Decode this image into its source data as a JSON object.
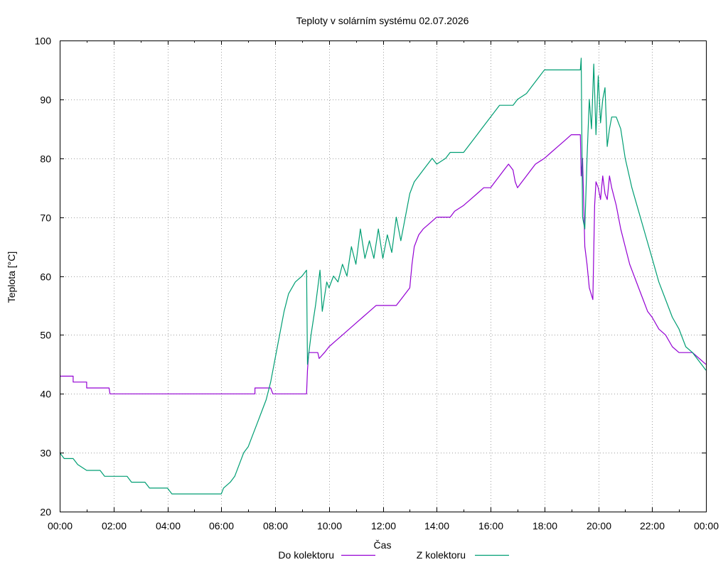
{
  "chart_data": {
    "type": "line",
    "title": "Teploty v solárním systému 02.07.2026",
    "xlabel": "Čas",
    "ylabel": "Teplota [°C]",
    "ylim": [
      20,
      100
    ],
    "xlim": [
      "00:00",
      "24:00"
    ],
    "y_ticks": [
      20,
      30,
      40,
      50,
      60,
      70,
      80,
      90,
      100
    ],
    "x_ticks": [
      "00:00",
      "02:00",
      "04:00",
      "06:00",
      "08:00",
      "10:00",
      "12:00",
      "14:00",
      "16:00",
      "18:00",
      "20:00",
      "22:00",
      "00:00"
    ],
    "grid": true,
    "legend_position": "bottom",
    "series": [
      {
        "name": "Do kolektoru",
        "color": "#9400d3",
        "points": [
          [
            "00:00",
            43
          ],
          [
            "00:30",
            43
          ],
          [
            "00:30",
            42
          ],
          [
            "01:00",
            42
          ],
          [
            "01:00",
            41
          ],
          [
            "01:50",
            41
          ],
          [
            "01:52",
            40
          ],
          [
            "02:00",
            40
          ],
          [
            "07:15",
            40
          ],
          [
            "07:15",
            41
          ],
          [
            "07:50",
            41
          ],
          [
            "07:55",
            40
          ],
          [
            "09:10",
            40
          ],
          [
            "09:12",
            44
          ],
          [
            "09:15",
            47
          ],
          [
            "09:35",
            47
          ],
          [
            "09:38",
            46
          ],
          [
            "09:50",
            47
          ],
          [
            "10:00",
            48
          ],
          [
            "10:15",
            49
          ],
          [
            "10:30",
            50
          ],
          [
            "10:45",
            51
          ],
          [
            "11:00",
            52
          ],
          [
            "11:15",
            53
          ],
          [
            "11:30",
            54
          ],
          [
            "11:45",
            55
          ],
          [
            "12:30",
            55
          ],
          [
            "12:40",
            56
          ],
          [
            "12:50",
            57
          ],
          [
            "13:00",
            58
          ],
          [
            "13:05",
            62
          ],
          [
            "13:10",
            65
          ],
          [
            "13:20",
            67
          ],
          [
            "13:30",
            68
          ],
          [
            "13:45",
            69
          ],
          [
            "14:00",
            70
          ],
          [
            "14:30",
            70
          ],
          [
            "14:40",
            71
          ],
          [
            "15:00",
            72
          ],
          [
            "15:15",
            73
          ],
          [
            "15:30",
            74
          ],
          [
            "15:45",
            75
          ],
          [
            "16:00",
            75
          ],
          [
            "16:10",
            76
          ],
          [
            "16:20",
            77
          ],
          [
            "16:30",
            78
          ],
          [
            "16:40",
            79
          ],
          [
            "16:50",
            78
          ],
          [
            "16:55",
            76
          ],
          [
            "17:00",
            75
          ],
          [
            "17:10",
            76
          ],
          [
            "17:20",
            77
          ],
          [
            "17:30",
            78
          ],
          [
            "17:40",
            79
          ],
          [
            "18:00",
            80
          ],
          [
            "18:15",
            81
          ],
          [
            "18:30",
            82
          ],
          [
            "18:45",
            83
          ],
          [
            "19:00",
            84
          ],
          [
            "19:20",
            84
          ],
          [
            "19:22",
            77
          ],
          [
            "19:25",
            80
          ],
          [
            "19:30",
            65
          ],
          [
            "19:35",
            62
          ],
          [
            "19:40",
            58
          ],
          [
            "19:48",
            56
          ],
          [
            "19:52",
            72
          ],
          [
            "19:55",
            76
          ],
          [
            "20:00",
            75
          ],
          [
            "20:05",
            73
          ],
          [
            "20:10",
            77
          ],
          [
            "20:15",
            74
          ],
          [
            "20:20",
            73
          ],
          [
            "20:25",
            77
          ],
          [
            "20:30",
            75
          ],
          [
            "20:40",
            72
          ],
          [
            "20:50",
            68
          ],
          [
            "21:00",
            65
          ],
          [
            "21:10",
            62
          ],
          [
            "21:20",
            60
          ],
          [
            "21:30",
            58
          ],
          [
            "21:40",
            56
          ],
          [
            "21:50",
            54
          ],
          [
            "22:00",
            53
          ],
          [
            "22:15",
            51
          ],
          [
            "22:30",
            50
          ],
          [
            "22:45",
            48
          ],
          [
            "23:00",
            47
          ],
          [
            "23:30",
            47
          ],
          [
            "23:45",
            46
          ],
          [
            "24:00",
            45
          ]
        ]
      },
      {
        "name": "Z kolektoru",
        "color": "#009e73",
        "points": [
          [
            "00:00",
            30
          ],
          [
            "00:10",
            29
          ],
          [
            "00:30",
            29
          ],
          [
            "00:40",
            28
          ],
          [
            "01:00",
            27
          ],
          [
            "01:30",
            27
          ],
          [
            "01:40",
            26
          ],
          [
            "02:30",
            26
          ],
          [
            "02:40",
            25
          ],
          [
            "03:10",
            25
          ],
          [
            "03:20",
            24
          ],
          [
            "04:00",
            24
          ],
          [
            "04:10",
            23
          ],
          [
            "06:00",
            23
          ],
          [
            "06:05",
            24
          ],
          [
            "06:20",
            25
          ],
          [
            "06:30",
            26
          ],
          [
            "06:40",
            28
          ],
          [
            "06:50",
            30
          ],
          [
            "07:00",
            31
          ],
          [
            "07:10",
            33
          ],
          [
            "07:20",
            35
          ],
          [
            "07:30",
            37
          ],
          [
            "07:40",
            39
          ],
          [
            "07:50",
            42
          ],
          [
            "08:00",
            46
          ],
          [
            "08:10",
            50
          ],
          [
            "08:20",
            54
          ],
          [
            "08:30",
            57
          ],
          [
            "08:45",
            59
          ],
          [
            "09:00",
            60
          ],
          [
            "09:10",
            61
          ],
          [
            "09:12",
            45
          ],
          [
            "09:20",
            50
          ],
          [
            "09:30",
            55
          ],
          [
            "09:40",
            61
          ],
          [
            "09:45",
            54
          ],
          [
            "09:55",
            59
          ],
          [
            "10:00",
            58
          ],
          [
            "10:10",
            60
          ],
          [
            "10:20",
            59
          ],
          [
            "10:30",
            62
          ],
          [
            "10:40",
            60
          ],
          [
            "10:50",
            65
          ],
          [
            "11:00",
            62
          ],
          [
            "11:10",
            68
          ],
          [
            "11:20",
            63
          ],
          [
            "11:30",
            66
          ],
          [
            "11:40",
            63
          ],
          [
            "11:50",
            68
          ],
          [
            "12:00",
            63
          ],
          [
            "12:10",
            67
          ],
          [
            "12:20",
            64
          ],
          [
            "12:30",
            70
          ],
          [
            "12:40",
            66
          ],
          [
            "12:50",
            70
          ],
          [
            "13:00",
            74
          ],
          [
            "13:10",
            76
          ],
          [
            "13:20",
            77
          ],
          [
            "13:30",
            78
          ],
          [
            "13:40",
            79
          ],
          [
            "13:50",
            80
          ],
          [
            "14:00",
            79
          ],
          [
            "14:20",
            80
          ],
          [
            "14:30",
            81
          ],
          [
            "15:00",
            81
          ],
          [
            "15:10",
            82
          ],
          [
            "15:20",
            83
          ],
          [
            "15:30",
            84
          ],
          [
            "15:40",
            85
          ],
          [
            "15:50",
            86
          ],
          [
            "16:00",
            87
          ],
          [
            "16:10",
            88
          ],
          [
            "16:20",
            89
          ],
          [
            "16:50",
            89
          ],
          [
            "17:00",
            90
          ],
          [
            "17:20",
            91
          ],
          [
            "17:30",
            92
          ],
          [
            "17:40",
            93
          ],
          [
            "17:50",
            94
          ],
          [
            "18:00",
            95
          ],
          [
            "19:20",
            95
          ],
          [
            "19:22",
            97
          ],
          [
            "19:25",
            70
          ],
          [
            "19:30",
            68
          ],
          [
            "19:35",
            80
          ],
          [
            "19:40",
            90
          ],
          [
            "19:45",
            85
          ],
          [
            "19:50",
            96
          ],
          [
            "19:55",
            84
          ],
          [
            "20:00",
            94
          ],
          [
            "20:05",
            86
          ],
          [
            "20:10",
            90
          ],
          [
            "20:15",
            92
          ],
          [
            "20:20",
            82
          ],
          [
            "20:25",
            85
          ],
          [
            "20:30",
            87
          ],
          [
            "20:40",
            87
          ],
          [
            "20:50",
            85
          ],
          [
            "21:00",
            80
          ],
          [
            "21:15",
            75
          ],
          [
            "21:30",
            71
          ],
          [
            "21:45",
            67
          ],
          [
            "22:00",
            63
          ],
          [
            "22:15",
            59
          ],
          [
            "22:30",
            56
          ],
          [
            "22:45",
            53
          ],
          [
            "23:00",
            51
          ],
          [
            "23:15",
            48
          ],
          [
            "23:30",
            47
          ],
          [
            "23:40",
            46
          ],
          [
            "23:50",
            45
          ],
          [
            "24:00",
            44
          ]
        ]
      }
    ]
  }
}
